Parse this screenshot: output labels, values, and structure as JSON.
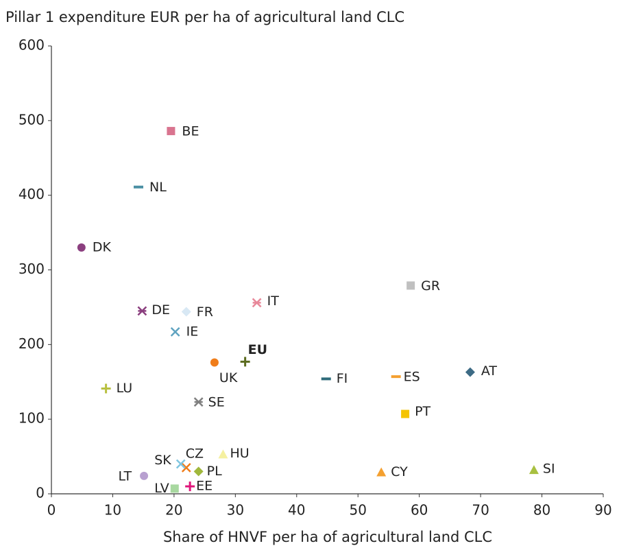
{
  "chart_data": {
    "type": "scatter",
    "title": "Pillar 1 expenditure EUR per ha of agricultural land CLC",
    "x_label": "Share of HNVF per ha of agricultural land CLC",
    "xlim": [
      0,
      90
    ],
    "xticks": [
      0,
      10,
      20,
      30,
      40,
      50,
      60,
      70,
      80,
      90
    ],
    "ylim": [
      0,
      600
    ],
    "yticks": [
      0,
      100,
      200,
      300,
      400,
      500,
      600
    ],
    "grid": false,
    "series": [
      {
        "name": "BE",
        "color": "#d9748f",
        "marker": "square",
        "x": [
          19.5
        ],
        "values": [
          486
        ]
      },
      {
        "name": "NL",
        "color": "#4a8fa3",
        "marker": "dash",
        "x": [
          14.2
        ],
        "values": [
          411
        ]
      },
      {
        "name": "DK",
        "color": "#8b3f7f",
        "marker": "circle",
        "x": [
          4.9
        ],
        "values": [
          330
        ]
      },
      {
        "name": "GR",
        "color": "#c0c0c0",
        "marker": "square",
        "x": [
          58.6
        ],
        "values": [
          279
        ]
      },
      {
        "name": "IT",
        "color": "#e8889a",
        "marker": "star",
        "x": [
          33.5
        ],
        "values": [
          256
        ]
      },
      {
        "name": "DE",
        "color": "#8b3f7f",
        "marker": "star",
        "x": [
          14.8
        ],
        "values": [
          245
        ]
      },
      {
        "name": "FR",
        "color": "#d8e8f4",
        "marker": "diamond",
        "x": [
          22.0
        ],
        "values": [
          244
        ]
      },
      {
        "name": "IE",
        "color": "#5fa3c0",
        "marker": "x",
        "x": [
          20.2
        ],
        "values": [
          217
        ]
      },
      {
        "name": "EU",
        "color": "#5b6b1f",
        "marker": "plus",
        "x": [
          31.6
        ],
        "values": [
          177
        ]
      },
      {
        "name": "UK",
        "color": "#f07d1a",
        "marker": "circle",
        "x": [
          26.6
        ],
        "values": [
          176
        ]
      },
      {
        "name": "FI",
        "color": "#2e6b7a",
        "marker": "dash",
        "x": [
          44.8
        ],
        "values": [
          154
        ]
      },
      {
        "name": "ES",
        "color": "#f4a030",
        "marker": "dash",
        "x": [
          56.2
        ],
        "values": [
          157
        ]
      },
      {
        "name": "AT",
        "color": "#3d6b85",
        "marker": "diamond",
        "x": [
          68.3
        ],
        "values": [
          163
        ]
      },
      {
        "name": "LU",
        "color": "#b8c040",
        "marker": "plus",
        "x": [
          8.9
        ],
        "values": [
          141
        ]
      },
      {
        "name": "SE",
        "color": "#7f7f7f",
        "marker": "star",
        "x": [
          24.0
        ],
        "values": [
          123
        ]
      },
      {
        "name": "PT",
        "color": "#f5c400",
        "marker": "square",
        "x": [
          57.7
        ],
        "values": [
          107
        ]
      },
      {
        "name": "HU",
        "color": "#f5f0a0",
        "marker": "triangle",
        "x": [
          28.0
        ],
        "values": [
          53
        ]
      },
      {
        "name": "CZ",
        "color": "#f07d1a",
        "marker": "x",
        "x": [
          22.0
        ],
        "values": [
          35
        ]
      },
      {
        "name": "SK",
        "color": "#7fc6e0",
        "marker": "x",
        "x": [
          21.1
        ],
        "values": [
          40
        ]
      },
      {
        "name": "PL",
        "color": "#a0b83c",
        "marker": "diamond",
        "x": [
          24.0
        ],
        "values": [
          30
        ]
      },
      {
        "name": "LT",
        "color": "#b8a0d0",
        "marker": "circle",
        "x": [
          15.1
        ],
        "values": [
          24
        ]
      },
      {
        "name": "LV",
        "color": "#a8d8a0",
        "marker": "square",
        "x": [
          20.1
        ],
        "values": [
          7
        ]
      },
      {
        "name": "EE",
        "color": "#e0157a",
        "marker": "plus",
        "x": [
          22.6
        ],
        "values": [
          10
        ]
      },
      {
        "name": "CY",
        "color": "#f4a030",
        "marker": "triangle",
        "x": [
          53.8
        ],
        "values": [
          29
        ]
      },
      {
        "name": "SI",
        "color": "#a8c040",
        "marker": "triangle",
        "x": [
          78.7
        ],
        "values": [
          32
        ]
      }
    ]
  }
}
